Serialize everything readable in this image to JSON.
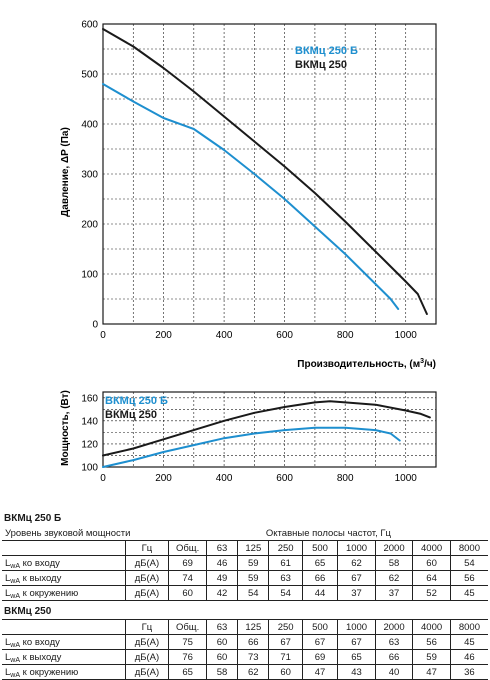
{
  "chart_data": [
    {
      "type": "line",
      "title": "",
      "xlabel": "Производительность, (м³/ч)",
      "ylabel": "Давление, ΔP (Па)",
      "xlim": [
        0,
        1100
      ],
      "ylim": [
        0,
        600
      ],
      "xticks": [
        "0",
        "200",
        "400",
        "600",
        "800",
        "1000"
      ],
      "yticks": [
        "0",
        "100",
        "200",
        "300",
        "400",
        "500",
        "600"
      ],
      "grid": true,
      "legend": "top-right",
      "series": [
        {
          "name": "ВКМц 250 Б",
          "color": "#1e8fcf",
          "x": [
            0,
            100,
            200,
            300,
            400,
            500,
            600,
            700,
            800,
            900,
            950,
            975
          ],
          "y": [
            480,
            445,
            412,
            390,
            348,
            300,
            250,
            195,
            140,
            80,
            50,
            30
          ]
        },
        {
          "name": "ВКМц 250",
          "color": "#1a1a1a",
          "x": [
            0,
            100,
            200,
            300,
            400,
            500,
            600,
            700,
            800,
            900,
            950,
            1000,
            1040,
            1070
          ],
          "y": [
            590,
            555,
            512,
            465,
            415,
            365,
            315,
            262,
            205,
            145,
            115,
            85,
            60,
            20
          ]
        }
      ]
    },
    {
      "type": "line",
      "title": "",
      "xlabel": "",
      "ylabel": "Мощность, (Вт)",
      "xlim": [
        0,
        1100
      ],
      "ylim": [
        100,
        165
      ],
      "xticks": [
        "0",
        "200",
        "400",
        "600",
        "800",
        "1000"
      ],
      "yticks": [
        "100",
        "120",
        "140",
        "160"
      ],
      "grid": true,
      "legend": "top-left",
      "series": [
        {
          "name": "ВКМц 250 Б",
          "color": "#1e8fcf",
          "x": [
            0,
            100,
            200,
            300,
            400,
            500,
            600,
            700,
            800,
            900,
            950,
            980
          ],
          "y": [
            100,
            106,
            113,
            119,
            125,
            129,
            132,
            134,
            134,
            132,
            129,
            123
          ]
        },
        {
          "name": "ВКМц 250",
          "color": "#1a1a1a",
          "x": [
            0,
            100,
            200,
            300,
            400,
            500,
            600,
            700,
            750,
            800,
            900,
            1000,
            1050,
            1080
          ],
          "y": [
            110,
            116,
            124,
            132,
            140,
            147,
            152,
            156,
            157,
            156,
            154,
            149,
            146,
            143
          ]
        }
      ]
    }
  ],
  "tables": [
    {
      "title": "ВКМц 250 Б",
      "caption": "Уровень звуковой мощности",
      "bands_caption": "Октавные полосы частот, Гц",
      "hz": "Гц",
      "columns": [
        "Общ.",
        "63",
        "125",
        "250",
        "500",
        "1000",
        "2000",
        "4000",
        "8000"
      ],
      "rows": [
        {
          "label": "L",
          "sub": "wA",
          "suffix": " ко входу",
          "unit": "дБ(А)",
          "values": [
            "69",
            "46",
            "59",
            "61",
            "65",
            "62",
            "58",
            "60",
            "54"
          ]
        },
        {
          "label": "L",
          "sub": "wA",
          "suffix": " к выходу",
          "unit": "дБ(А)",
          "values": [
            "74",
            "49",
            "59",
            "63",
            "66",
            "67",
            "62",
            "64",
            "56"
          ]
        },
        {
          "label": "L",
          "sub": "wA",
          "suffix": " к окружению",
          "unit": "дБ(А)",
          "values": [
            "60",
            "42",
            "54",
            "54",
            "44",
            "37",
            "37",
            "52",
            "45"
          ]
        }
      ]
    },
    {
      "title": "ВКМц 250",
      "hz": "Гц",
      "columns": [
        "Общ.",
        "63",
        "125",
        "250",
        "500",
        "1000",
        "2000",
        "4000",
        "8000"
      ],
      "rows": [
        {
          "label": "L",
          "sub": "wA",
          "suffix": " ко входу",
          "unit": "дБ(А)",
          "values": [
            "75",
            "60",
            "66",
            "67",
            "67",
            "67",
            "63",
            "56",
            "45"
          ]
        },
        {
          "label": "L",
          "sub": "wA",
          "suffix": " к выходу",
          "unit": "дБ(А)",
          "values": [
            "76",
            "60",
            "73",
            "71",
            "69",
            "65",
            "66",
            "59",
            "46"
          ]
        },
        {
          "label": "L",
          "sub": "wA",
          "suffix": " к окружению",
          "unit": "дБ(А)",
          "values": [
            "65",
            "58",
            "62",
            "60",
            "47",
            "43",
            "40",
            "47",
            "36"
          ]
        }
      ]
    }
  ]
}
